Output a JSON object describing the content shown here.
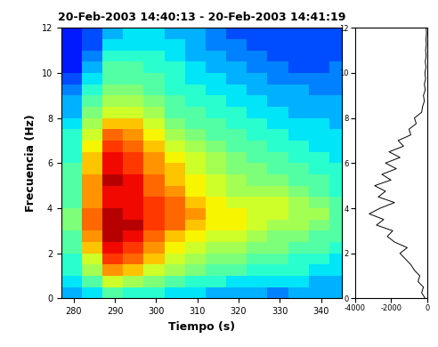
{
  "chart_data": [
    {
      "type": "heatmap",
      "title": "20-Feb-2003 14:40:13 - 20-Feb-2003 14:41:19",
      "x_label": "Tiempo (s)",
      "y_label": "Frecuencia (Hz)",
      "x_edges": [
        277,
        282,
        287,
        292,
        297,
        302,
        307,
        312,
        317,
        322,
        327,
        332,
        337,
        342,
        347
      ],
      "y_edges": [
        0,
        0.5,
        1,
        1.5,
        2,
        2.5,
        3,
        3.5,
        4,
        4.5,
        5,
        5.5,
        6,
        6.5,
        7,
        7.5,
        8,
        8.5,
        9,
        9.5,
        10,
        10.5,
        11,
        11.5,
        12
      ],
      "cells": [
        [
          0.3,
          0.35,
          0.45,
          0.4,
          0.4,
          0.35,
          0.35,
          0.3,
          0.3,
          0.3,
          0.25,
          0.3,
          0.3,
          0.3
        ],
        [
          0.35,
          0.45,
          0.6,
          0.55,
          0.5,
          0.45,
          0.4,
          0.4,
          0.35,
          0.35,
          0.35,
          0.35,
          0.3,
          0.3
        ],
        [
          0.4,
          0.55,
          0.75,
          0.7,
          0.6,
          0.55,
          0.5,
          0.45,
          0.45,
          0.4,
          0.4,
          0.4,
          0.35,
          0.35
        ],
        [
          0.4,
          0.6,
          0.85,
          0.8,
          0.7,
          0.6,
          0.55,
          0.5,
          0.5,
          0.45,
          0.45,
          0.4,
          0.4,
          0.35
        ],
        [
          0.45,
          0.7,
          0.9,
          0.85,
          0.75,
          0.65,
          0.6,
          0.55,
          0.55,
          0.5,
          0.5,
          0.45,
          0.45,
          0.4
        ],
        [
          0.45,
          0.75,
          0.95,
          0.9,
          0.8,
          0.7,
          0.65,
          0.6,
          0.6,
          0.55,
          0.5,
          0.5,
          0.45,
          0.45
        ],
        [
          0.5,
          0.8,
          0.95,
          0.95,
          0.85,
          0.8,
          0.7,
          0.65,
          0.65,
          0.6,
          0.55,
          0.55,
          0.5,
          0.45
        ],
        [
          0.5,
          0.8,
          0.95,
          0.9,
          0.85,
          0.8,
          0.75,
          0.65,
          0.65,
          0.6,
          0.6,
          0.55,
          0.55,
          0.45
        ],
        [
          0.45,
          0.75,
          0.9,
          0.9,
          0.85,
          0.8,
          0.7,
          0.65,
          0.6,
          0.6,
          0.6,
          0.55,
          0.5,
          0.45
        ],
        [
          0.45,
          0.75,
          0.9,
          0.9,
          0.8,
          0.75,
          0.65,
          0.6,
          0.55,
          0.55,
          0.55,
          0.5,
          0.45,
          0.4
        ],
        [
          0.45,
          0.75,
          0.95,
          0.9,
          0.8,
          0.7,
          0.65,
          0.6,
          0.55,
          0.5,
          0.5,
          0.45,
          0.45,
          0.4
        ],
        [
          0.45,
          0.7,
          0.9,
          0.85,
          0.75,
          0.7,
          0.6,
          0.55,
          0.5,
          0.5,
          0.45,
          0.45,
          0.4,
          0.4
        ],
        [
          0.4,
          0.7,
          0.9,
          0.85,
          0.75,
          0.65,
          0.6,
          0.55,
          0.5,
          0.45,
          0.45,
          0.4,
          0.4,
          0.35
        ],
        [
          0.4,
          0.65,
          0.85,
          0.8,
          0.7,
          0.6,
          0.55,
          0.5,
          0.45,
          0.45,
          0.4,
          0.4,
          0.35,
          0.35
        ],
        [
          0.4,
          0.6,
          0.8,
          0.75,
          0.65,
          0.55,
          0.5,
          0.45,
          0.45,
          0.4,
          0.4,
          0.35,
          0.35,
          0.35
        ],
        [
          0.35,
          0.55,
          0.7,
          0.7,
          0.6,
          0.5,
          0.45,
          0.45,
          0.4,
          0.4,
          0.35,
          0.35,
          0.35,
          0.3
        ],
        [
          0.3,
          0.5,
          0.6,
          0.6,
          0.55,
          0.45,
          0.45,
          0.4,
          0.4,
          0.35,
          0.35,
          0.3,
          0.3,
          0.3
        ],
        [
          0.3,
          0.45,
          0.55,
          0.55,
          0.5,
          0.45,
          0.4,
          0.4,
          0.35,
          0.35,
          0.3,
          0.3,
          0.3,
          0.3
        ],
        [
          0.25,
          0.4,
          0.5,
          0.5,
          0.45,
          0.4,
          0.4,
          0.35,
          0.35,
          0.3,
          0.3,
          0.3,
          0.25,
          0.25
        ],
        [
          0.2,
          0.35,
          0.45,
          0.45,
          0.45,
          0.4,
          0.35,
          0.35,
          0.3,
          0.3,
          0.25,
          0.25,
          0.25,
          0.25
        ],
        [
          0.15,
          0.3,
          0.45,
          0.45,
          0.4,
          0.4,
          0.35,
          0.3,
          0.3,
          0.25,
          0.25,
          0.2,
          0.2,
          0.25
        ],
        [
          0.15,
          0.25,
          0.4,
          0.4,
          0.4,
          0.35,
          0.3,
          0.3,
          0.25,
          0.25,
          0.2,
          0.2,
          0.2,
          0.2
        ],
        [
          0.15,
          0.2,
          0.35,
          0.35,
          0.35,
          0.35,
          0.3,
          0.25,
          0.25,
          0.2,
          0.2,
          0.2,
          0.2,
          0.2
        ],
        [
          0.15,
          0.2,
          0.3,
          0.35,
          0.35,
          0.3,
          0.3,
          0.25,
          0.2,
          0.2,
          0.2,
          0.2,
          0.2,
          0.2
        ]
      ],
      "zlim": [
        0,
        1
      ],
      "xlim": [
        277,
        345
      ],
      "xticks": [
        280,
        290,
        300,
        310,
        320,
        330,
        340
      ],
      "ylim": [
        0,
        12
      ],
      "yticks": [
        0,
        2,
        4,
        6,
        8,
        10,
        12
      ]
    },
    {
      "type": "line",
      "orientation": "horizontal",
      "color": "#000000",
      "frequencies": [
        0,
        0.25,
        0.5,
        0.75,
        1,
        1.25,
        1.5,
        1.75,
        2,
        2.25,
        2.5,
        2.75,
        3,
        3.25,
        3.5,
        3.75,
        4,
        4.25,
        4.5,
        4.75,
        5,
        5.25,
        5.5,
        5.75,
        6,
        6.25,
        6.5,
        6.75,
        7,
        7.25,
        7.5,
        7.75,
        8,
        8.25,
        8.5,
        8.75,
        9,
        9.25,
        9.5,
        9.75,
        10,
        10.25,
        10.5,
        10.75,
        11,
        11.25,
        11.5,
        11.75,
        12
      ],
      "values": [
        -100,
        -300,
        -200,
        -500,
        -400,
        -700,
        -900,
        -1200,
        -1500,
        -1100,
        -1800,
        -2200,
        -1900,
        -2800,
        -2400,
        -3200,
        -2600,
        -1800,
        -2700,
        -2300,
        -2900,
        -2000,
        -2500,
        -1700,
        -2300,
        -1500,
        -2100,
        -1300,
        -1600,
        -900,
        -1000,
        -600,
        -700,
        -300,
        -250,
        -150,
        -200,
        -100,
        -150,
        -80,
        -120,
        -60,
        -100,
        -50,
        -80,
        -40,
        -60,
        -30,
        -50
      ],
      "xlim": [
        -4000,
        0
      ],
      "xticks": [
        -4000,
        -2000,
        0
      ],
      "ylim": [
        0,
        12
      ],
      "yticks": [
        0,
        2,
        4,
        6,
        8,
        10,
        12
      ]
    }
  ]
}
